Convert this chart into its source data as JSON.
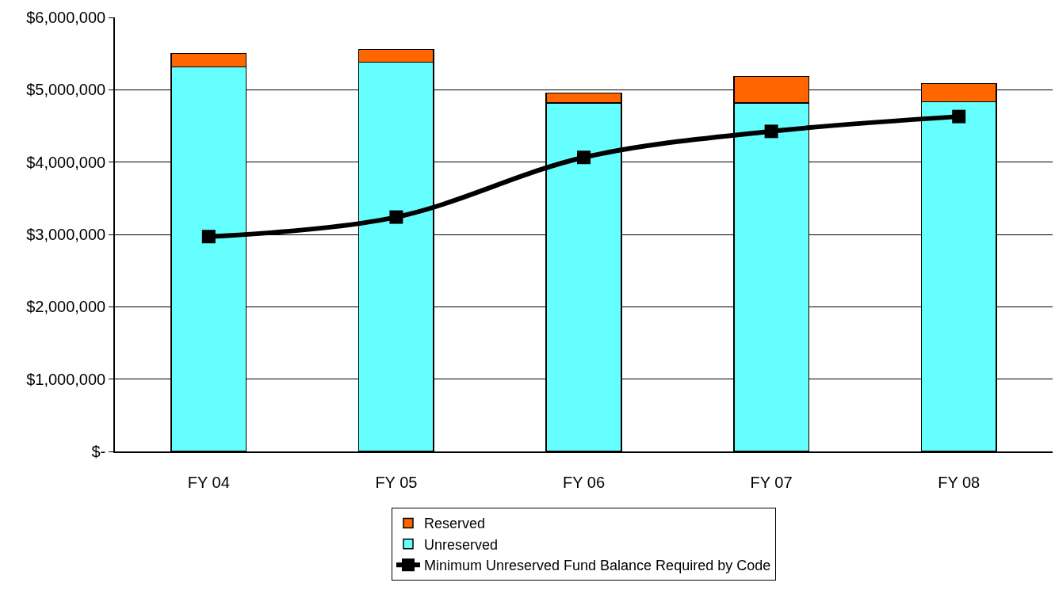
{
  "chart_data": {
    "type": "bar",
    "stacked": true,
    "categories": [
      "FY 04",
      "FY 05",
      "FY 06",
      "FY 07",
      "FY 08"
    ],
    "series": [
      {
        "name": "Unreserved",
        "color": "#66ffff",
        "values": [
          5315000,
          5380000,
          4815000,
          4815000,
          4835000
        ]
      },
      {
        "name": "Reserved",
        "color": "#ff6600",
        "values": [
          185000,
          175000,
          140000,
          370000,
          250000
        ]
      },
      {
        "name": "Minimum Unreserved Fund Balance Required by Code",
        "type": "line",
        "color": "#000000",
        "marker": "square",
        "values": [
          2970000,
          3240000,
          4065000,
          4425000,
          4630000
        ]
      }
    ],
    "ylim": [
      0,
      6000000
    ],
    "yticks": [
      {
        "value": 0,
        "label": "$-"
      },
      {
        "value": 1000000,
        "label": "$1,000,000"
      },
      {
        "value": 2000000,
        "label": "$2,000,000"
      },
      {
        "value": 3000000,
        "label": "$3,000,000"
      },
      {
        "value": 4000000,
        "label": "$4,000,000"
      },
      {
        "value": 5000000,
        "label": "$5,000,000"
      },
      {
        "value": 6000000,
        "label": "$6,000,000"
      }
    ],
    "grid": "y",
    "legend": "bottom"
  }
}
